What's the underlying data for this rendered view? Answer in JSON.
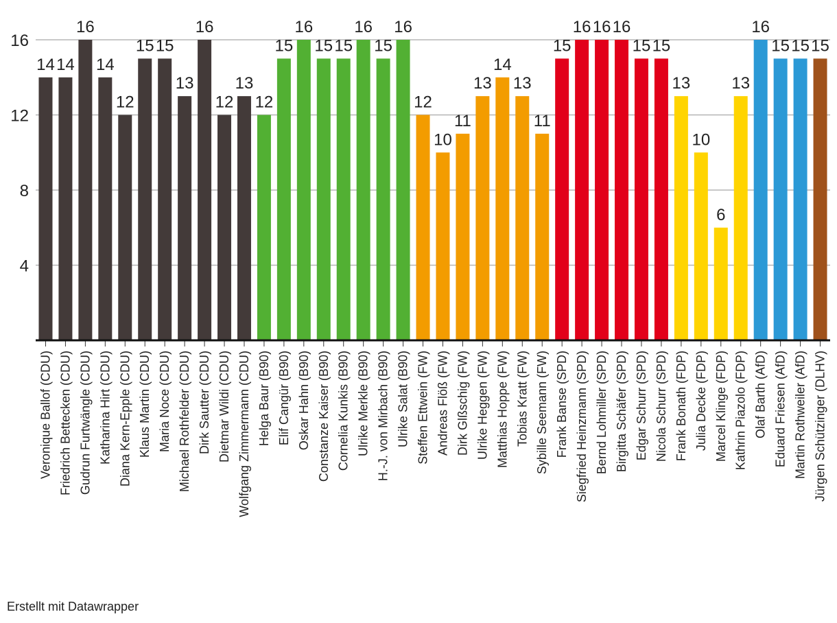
{
  "chart_data": {
    "type": "bar",
    "title": "",
    "xlabel": "",
    "ylabel": "",
    "ylim": [
      0,
      17
    ],
    "yticks": [
      4,
      8,
      12,
      16
    ],
    "grid": true,
    "categories": [
      "Veronique Ballof (CDU)",
      "Friedrich Bettecken (CDU)",
      "Gudrun Furtwängle (CDU)",
      "Katharina Hirt (CDU)",
      "Diana Kern-Epple (CDU)",
      "Klaus Martin (CDU)",
      "Maria Noce (CDU)",
      "Michael Rothfelder (CDU)",
      "Dirk Sautter (CDU)",
      "Dietmar Wildi (CDU)",
      "Wolfgang Zimmermann (CDU)",
      "Helga Baur (B90)",
      "Elif Cangür (B90)",
      "Oskar Hahn (B90)",
      "Constanze Kaiser (B90)",
      "Cornelia Kunkis (B90)",
      "Ulrike Merkle (B90)",
      "H.-J. von Mirbach (B90)",
      "Ulrike Salat (B90)",
      "Steffen Ettwein (FW)",
      "Andreas Flöß (FW)",
      "Dirk Glßschig (FW)",
      "Ulrike Heggen (FW)",
      "Matthias Hoppe (FW)",
      "Tobias Kratt (FW)",
      "Sybille Seemann (FW)",
      "Frank Banse (SPD)",
      "Siegfried Heinzmann (SPD)",
      "Bernd Lohmiller (SPD)",
      "Birgitta Schäfer (SPD)",
      "Edgar Schurr (SPD)",
      "Nicola Schurr (SPD)",
      "Frank Bonath (FDP)",
      "Julia Decke (FDP)",
      "Marcel Klinge (FDP)",
      "Kathrin Piazolo (FDP)",
      "Olaf Barth (AfD)",
      "Eduard Friesen (AfD)",
      "Martin Rothweiler (AfD)",
      "Jürgen Schützinger (DLHV)"
    ],
    "values": [
      14,
      14,
      16,
      14,
      12,
      15,
      15,
      13,
      16,
      12,
      13,
      12,
      15,
      16,
      15,
      15,
      16,
      15,
      16,
      12,
      10,
      11,
      13,
      14,
      13,
      11,
      15,
      16,
      16,
      16,
      15,
      15,
      13,
      10,
      6,
      13,
      16,
      15,
      15,
      15
    ],
    "parties": [
      "CDU",
      "CDU",
      "CDU",
      "CDU",
      "CDU",
      "CDU",
      "CDU",
      "CDU",
      "CDU",
      "CDU",
      "CDU",
      "B90",
      "B90",
      "B90",
      "B90",
      "B90",
      "B90",
      "B90",
      "B90",
      "FW",
      "FW",
      "FW",
      "FW",
      "FW",
      "FW",
      "FW",
      "SPD",
      "SPD",
      "SPD",
      "SPD",
      "SPD",
      "SPD",
      "FDP",
      "FDP",
      "FDP",
      "FDP",
      "AfD",
      "AfD",
      "AfD",
      "DLHV"
    ],
    "party_colors": {
      "CDU": "#433a39",
      "B90": "#52b033",
      "FW": "#f39c00",
      "SPD": "#e2001a",
      "FDP": "#ffd400",
      "AfD": "#2b99d6",
      "DLHV": "#a0521b"
    }
  },
  "footer": {
    "credit": "Erstellt mit Datawrapper"
  }
}
